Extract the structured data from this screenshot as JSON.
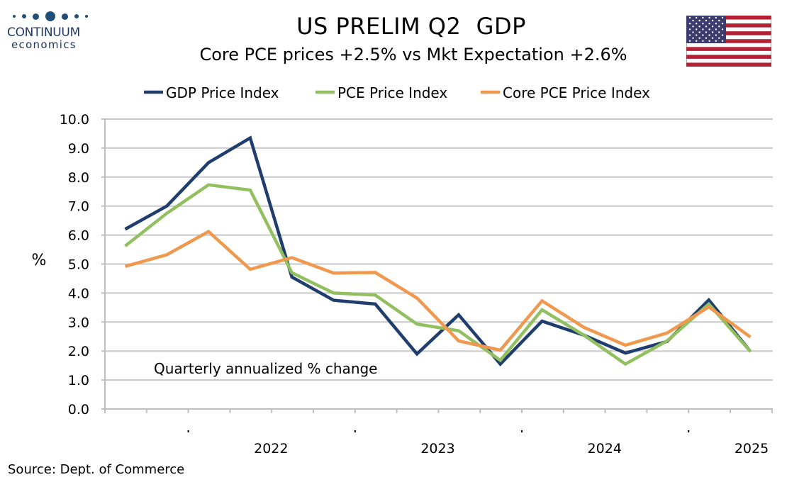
{
  "header": {
    "title": "US PRELIM Q2  GDP",
    "subtitle": "Core PCE prices +2.5% vs Mkt Expectation +2.6%"
  },
  "logo": {
    "name": "CONTINUUM",
    "sub": "economics"
  },
  "flag": {
    "icon": "us-flag-icon",
    "red": "#b22234",
    "blue": "#3c3b6e"
  },
  "source": "Source: Dept. of Commerce",
  "chart_data": {
    "type": "line",
    "title": "",
    "ylabel": "%",
    "annotation": "Quarterly annualized % change",
    "ylim": [
      0,
      10
    ],
    "yticks": [
      "0.0",
      "1.0",
      "2.0",
      "3.0",
      "4.0",
      "5.0",
      "6.0",
      "7.0",
      "8.0",
      "9.0",
      "10.0"
    ],
    "grid": true,
    "legend_position": "top",
    "x": [
      "2021Q3",
      "2021Q4",
      "2022Q1",
      "2022Q2",
      "2022Q3",
      "2022Q4",
      "2023Q1",
      "2023Q2",
      "2023Q3",
      "2023Q4",
      "2024Q1",
      "2024Q2",
      "2024Q3",
      "2024Q4",
      "2025Q1",
      "2025Q2"
    ],
    "year_labels": [
      "2022",
      "2023",
      "2024",
      "2025"
    ],
    "series": [
      {
        "name": "GDP Price Index",
        "color": "#1f3e6e",
        "values": [
          6.2,
          7.0,
          8.5,
          9.35,
          4.55,
          3.75,
          3.62,
          1.9,
          3.25,
          1.55,
          3.03,
          2.55,
          1.93,
          2.33,
          3.76,
          1.98
        ]
      },
      {
        "name": "PCE Price Index",
        "color": "#92c060",
        "values": [
          5.62,
          6.75,
          7.73,
          7.55,
          4.7,
          4.0,
          3.93,
          2.93,
          2.7,
          1.68,
          3.42,
          2.55,
          1.55,
          2.35,
          3.62,
          1.98
        ]
      },
      {
        "name": "Core PCE Price Index",
        "color": "#f0984e",
        "values": [
          4.92,
          5.32,
          6.12,
          4.82,
          5.22,
          4.69,
          4.71,
          3.83,
          2.35,
          2.03,
          3.73,
          2.82,
          2.2,
          2.62,
          3.52,
          2.48
        ]
      }
    ]
  }
}
